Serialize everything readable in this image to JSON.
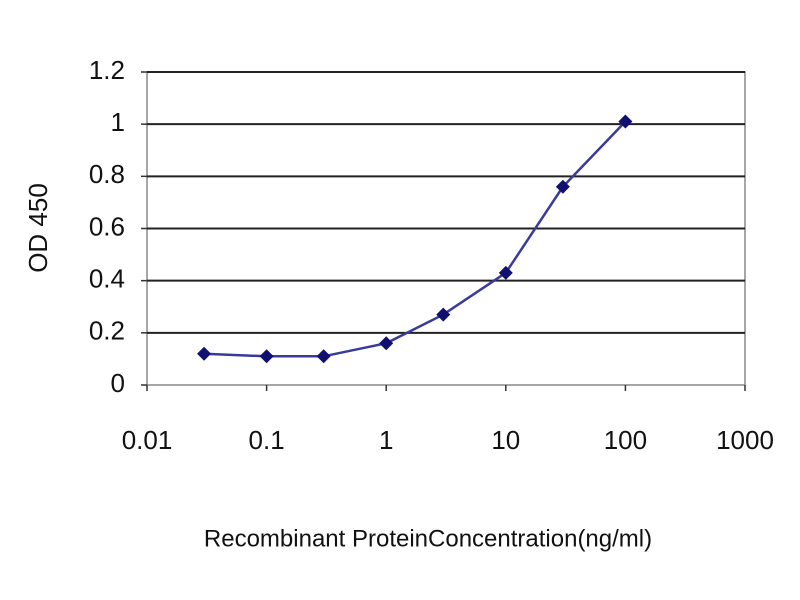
{
  "chart_data": {
    "type": "line",
    "x": [
      0.03,
      0.1,
      0.3,
      1,
      3,
      10,
      30,
      100
    ],
    "series": [
      {
        "name": "OD 450",
        "color": "#3a3a9a",
        "values": [
          0.12,
          0.11,
          0.11,
          0.16,
          0.27,
          0.43,
          0.76,
          1.01
        ]
      }
    ],
    "xlabel": "Recombinant ProteinConcentration(ng/ml)",
    "ylabel": "OD 450",
    "xscale": "log",
    "xlim": [
      0.01,
      1000
    ],
    "xticks": [
      0.01,
      0.1,
      1,
      10,
      100,
      1000
    ],
    "ylim": [
      0,
      1.2
    ],
    "yticks": [
      0,
      0.2,
      0.4,
      0.6,
      0.8,
      1,
      1.2
    ],
    "grid": true
  }
}
